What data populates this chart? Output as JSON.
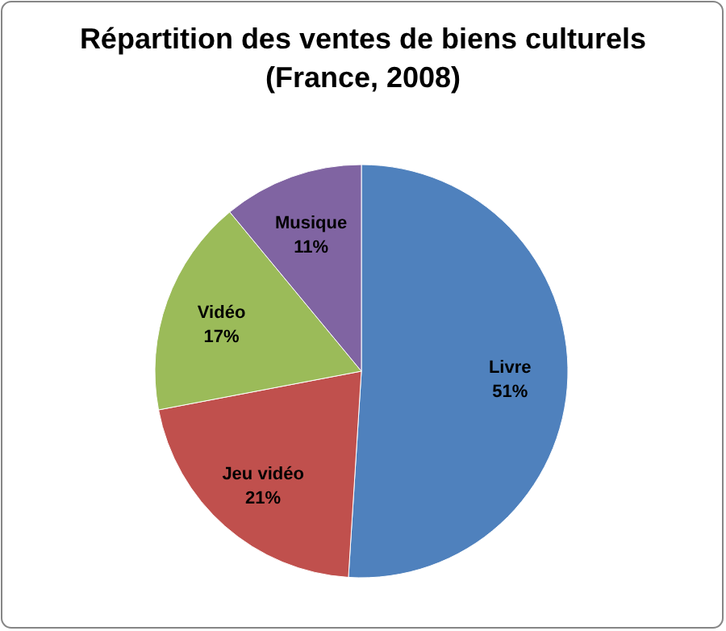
{
  "chart_data": {
    "type": "pie",
    "title": "Répartition des ventes de biens culturels\n(France, 2008)",
    "categories": [
      "Livre",
      "Jeu vidéo",
      "Vidéo",
      "Musique"
    ],
    "values": [
      51,
      21,
      17,
      11
    ],
    "colors": [
      "#4f81bd",
      "#c0504d",
      "#9bbb59",
      "#8064a2"
    ],
    "value_labels": [
      "51%",
      "21%",
      "17%",
      "11%"
    ],
    "legend": false
  }
}
